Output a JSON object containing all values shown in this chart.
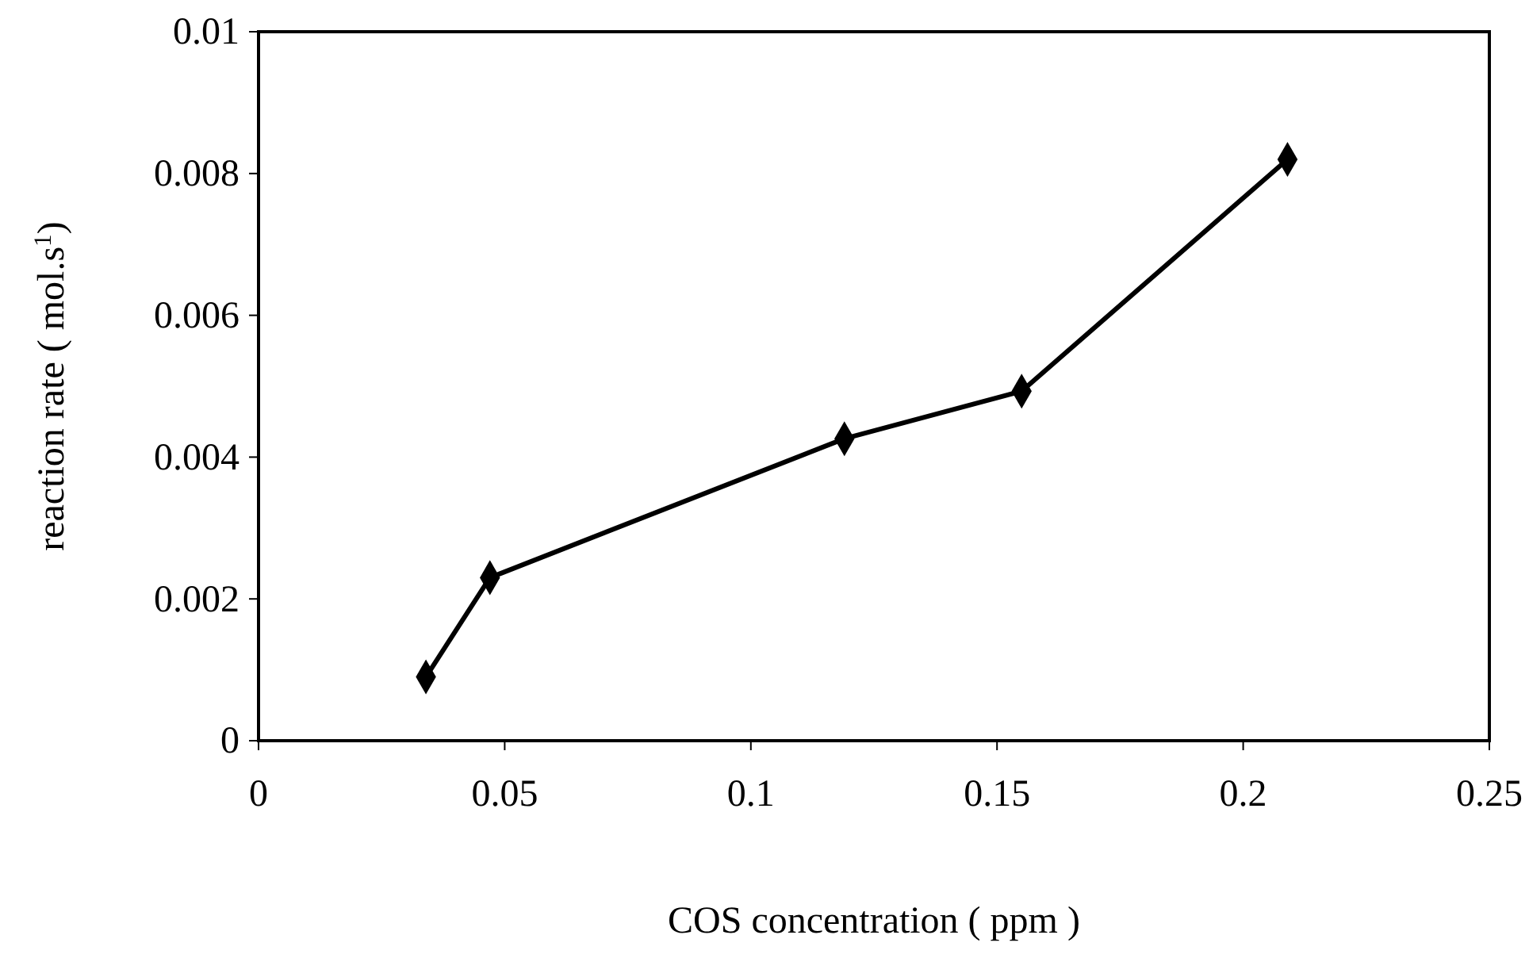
{
  "chart_data": {
    "type": "line",
    "xlabel": "COS concentration ( ppm )",
    "ylabel": "reaction rate ( mol.s$^{1}$)",
    "x": [
      0.034,
      0.047,
      0.119,
      0.155,
      0.209
    ],
    "series": [
      {
        "color": "#000000",
        "values": [
          0.0009,
          0.0023,
          0.00426,
          0.00493,
          0.0082
        ]
      }
    ],
    "xlim": [
      0,
      0.25
    ],
    "xticks": [
      0,
      0.05,
      0.1,
      0.15,
      0.2,
      0.25
    ],
    "ylim": [
      0,
      0.01
    ],
    "yticks": [
      0,
      0.002,
      0.004,
      0.006,
      0.008,
      0.01
    ],
    "marker": "diamond",
    "line_style": "solid",
    "grid": false
  }
}
